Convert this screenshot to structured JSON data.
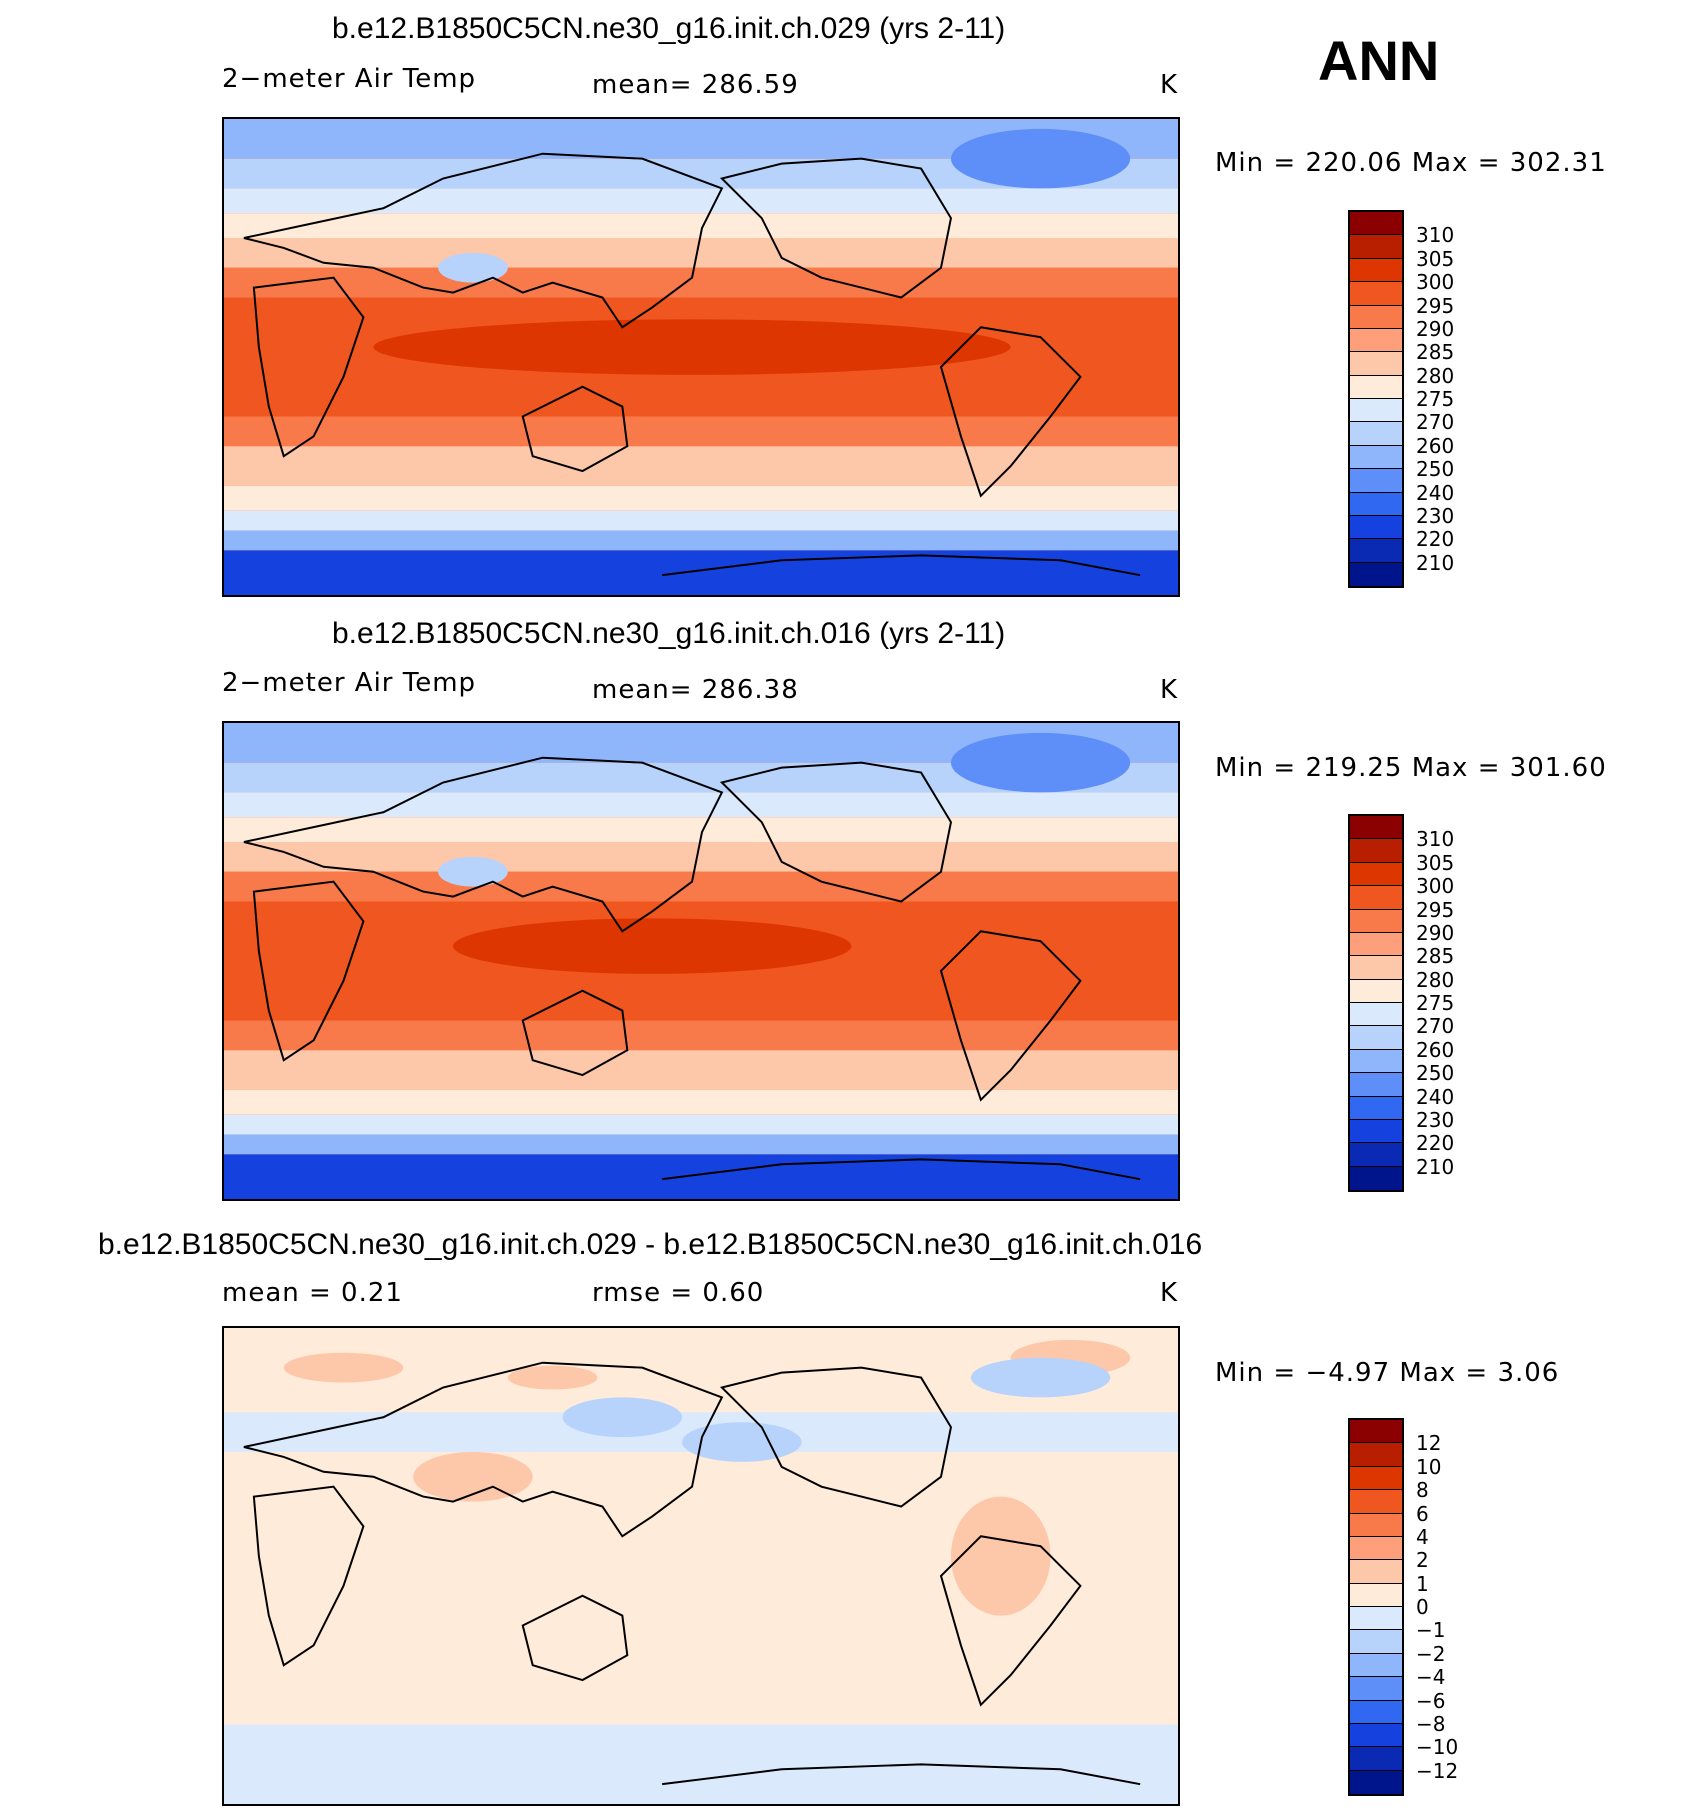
{
  "header": {
    "season": "ANN"
  },
  "panels": [
    {
      "title": "b.e12.B1850C5CN.ne30_g16.init.ch.029 (yrs 2-11)",
      "left_text": "2−meter Air Temp",
      "center_text": "mean=  286.59",
      "units": "K",
      "minmax": "Min  =  220.06  Max  =  302.31",
      "kind": "abs"
    },
    {
      "title": "b.e12.B1850C5CN.ne30_g16.init.ch.016 (yrs 2-11)",
      "left_text": "2−meter Air Temp",
      "center_text": "mean=  286.38",
      "units": "K",
      "minmax": "Min  =  219.25  Max  =  301.60",
      "kind": "abs"
    },
    {
      "title": "b.e12.B1850C5CN.ne30_g16.init.ch.029 - b.e12.B1850C5CN.ne30_g16.init.ch.016",
      "left_text": "mean  =     0.21",
      "center_text": "rmse  =     0.60",
      "units": "K",
      "minmax": "Min  =    −4.97  Max  =      3.06",
      "kind": "diff"
    }
  ],
  "colorbars": {
    "abs": {
      "labels": [
        "310",
        "305",
        "300",
        "295",
        "290",
        "285",
        "280",
        "275",
        "270",
        "260",
        "250",
        "240",
        "230",
        "220",
        "210"
      ],
      "colors": [
        "#8b0000",
        "#b81f00",
        "#de3600",
        "#f0561f",
        "#f8794a",
        "#fc9f7a",
        "#fdc7a9",
        "#feebd9",
        "#dae9fb",
        "#b7d3fb",
        "#8fb5fb",
        "#5e8ff8",
        "#3068f2",
        "#1542de",
        "#0a2ab3",
        "#00148c"
      ]
    },
    "diff": {
      "labels": [
        "12",
        "10",
        "8",
        "6",
        "4",
        "2",
        "1",
        "0",
        "−1",
        "−2",
        "−4",
        "−6",
        "−8",
        "−10",
        "−12"
      ],
      "colors": [
        "#8b0000",
        "#b81f00",
        "#de3600",
        "#f0561f",
        "#f8794a",
        "#fc9f7a",
        "#fdc7a9",
        "#feebd9",
        "#dae9fb",
        "#b7d3fb",
        "#8fb5fb",
        "#5e8ff8",
        "#3068f2",
        "#1542de",
        "#0a2ab3",
        "#00148c"
      ]
    }
  }
}
